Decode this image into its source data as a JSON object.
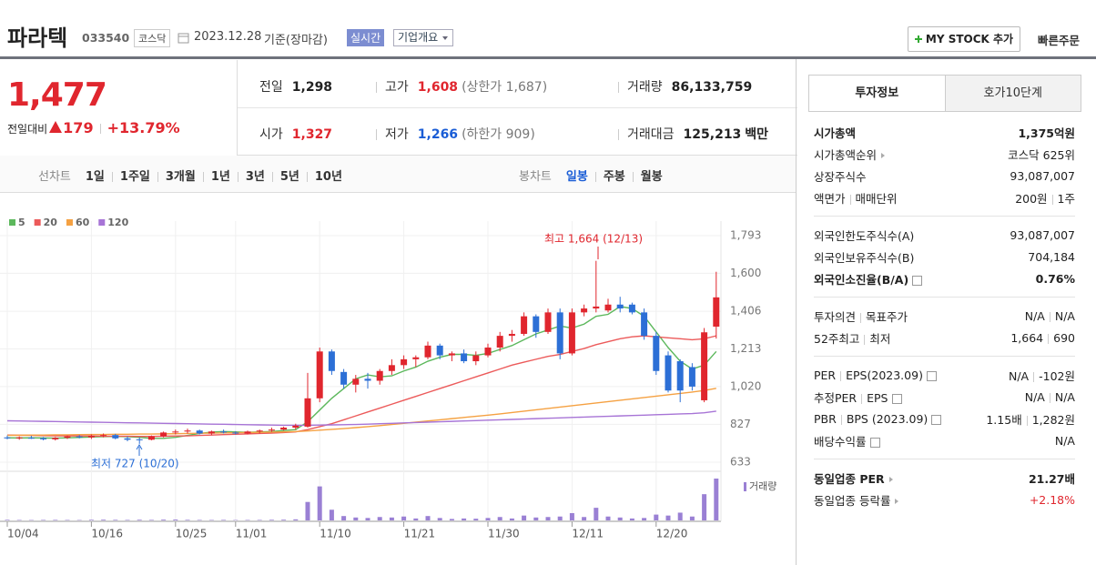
{
  "header": {
    "name": "파라텍",
    "code": "033540",
    "market": "코스닥",
    "date": "2023.12.28",
    "basis": "기준(장마감)",
    "realtime": "실시간",
    "company_info": "기업개요",
    "mystock": "MY STOCK 추가",
    "quick_order": "빠른주문"
  },
  "price": {
    "current": "1,477",
    "change_label": "전일대비",
    "change": "179",
    "change_rate": "+13.79%"
  },
  "summary": [
    {
      "label": "전일",
      "value": "1,298"
    },
    {
      "label": "고가",
      "value": "1,608",
      "extra": "(상한가 1,687)",
      "color": "#e0262e"
    },
    {
      "label": "거래량",
      "value": "86,133,759"
    },
    {
      "label": "시가",
      "value": "1,327",
      "color": "#e0262e"
    },
    {
      "label": "저가",
      "value": "1,266",
      "extra": "(하한가 909)",
      "color": "#1a5dd6"
    },
    {
      "label": "거래대금",
      "value": "125,213",
      "unit": "백만"
    }
  ],
  "chart_tabs": {
    "line_label": "선차트",
    "line_periods": [
      "1일",
      "1주일",
      "3개월",
      "1년",
      "3년",
      "5년",
      "10년"
    ],
    "candle_label": "봉차트",
    "candle_periods": [
      "일봉",
      "주봉",
      "월봉"
    ],
    "candle_selected_index": 0
  },
  "chart_data": {
    "type": "candlestick",
    "categories": [
      "10/04",
      null,
      null,
      null,
      null,
      null,
      null,
      "10/16",
      null,
      null,
      null,
      null,
      null,
      null,
      "10/25",
      null,
      null,
      null,
      null,
      "11/01",
      null,
      null,
      null,
      null,
      null,
      null,
      "11/10",
      null,
      null,
      null,
      null,
      null,
      null,
      "11/21",
      null,
      null,
      null,
      null,
      null,
      null,
      "11/30",
      null,
      null,
      null,
      null,
      null,
      null,
      "12/11",
      null,
      null,
      null,
      null,
      null,
      null,
      "12/20",
      null,
      null,
      null,
      null,
      null
    ],
    "open": [
      760,
      755,
      758,
      756,
      750,
      758,
      765,
      760,
      768,
      772,
      755,
      750,
      748,
      765,
      785,
      790,
      795,
      780,
      790,
      785,
      780,
      790,
      795,
      800,
      810,
      815,
      960,
      1200,
      1095,
      1030,
      1060,
      1050,
      1100,
      1130,
      1160,
      1170,
      1230,
      1180,
      1190,
      1150,
      1180,
      1220,
      1280,
      1290,
      1380,
      1300,
      1400,
      1190,
      1400,
      1420,
      1410,
      1440,
      1440,
      1400,
      1280,
      1180,
      1150,
      1120,
      950,
      1327
    ],
    "high": [
      770,
      765,
      768,
      762,
      762,
      770,
      772,
      775,
      780,
      778,
      765,
      760,
      770,
      790,
      800,
      805,
      800,
      795,
      800,
      792,
      795,
      800,
      810,
      815,
      830,
      1090,
      1220,
      1210,
      1110,
      1080,
      1090,
      1110,
      1160,
      1180,
      1180,
      1250,
      1240,
      1200,
      1210,
      1200,
      1240,
      1300,
      1310,
      1400,
      1390,
      1420,
      1420,
      1420,
      1440,
      1664,
      1470,
      1480,
      1450,
      1420,
      1300,
      1200,
      1160,
      1140,
      1320,
      1608
    ],
    "low": [
      750,
      748,
      752,
      745,
      744,
      752,
      755,
      752,
      760,
      750,
      740,
      727,
      745,
      760,
      775,
      780,
      775,
      772,
      780,
      775,
      775,
      780,
      788,
      795,
      800,
      810,
      940,
      1080,
      1010,
      990,
      1010,
      1030,
      1080,
      1110,
      1120,
      1160,
      1160,
      1150,
      1140,
      1130,
      1170,
      1200,
      1250,
      1280,
      1270,
      1290,
      1160,
      1180,
      1380,
      1400,
      1400,
      1400,
      1390,
      1260,
      1080,
      990,
      940,
      1000,
      940,
      1266
    ],
    "close": [
      755,
      760,
      756,
      750,
      758,
      765,
      760,
      768,
      772,
      755,
      748,
      748,
      765,
      785,
      790,
      795,
      780,
      790,
      785,
      780,
      790,
      795,
      800,
      810,
      820,
      960,
      1200,
      1100,
      1030,
      1060,
      1050,
      1100,
      1130,
      1160,
      1170,
      1230,
      1180,
      1190,
      1150,
      1180,
      1220,
      1280,
      1290,
      1380,
      1300,
      1400,
      1190,
      1400,
      1420,
      1430,
      1440,
      1420,
      1400,
      1280,
      1100,
      1000,
      1000,
      1020,
      1298,
      1477
    ],
    "up_color": "#e0262e",
    "down_color": "#2c6fd6",
    "series": [
      {
        "name": "5",
        "color": "#5cb85c",
        "values": [
          758,
          757,
          758,
          757,
          756,
          758,
          760,
          762,
          764,
          765,
          764,
          760,
          755,
          755,
          760,
          770,
          780,
          787,
          790,
          788,
          786,
          788,
          790,
          795,
          800,
          840,
          900,
          960,
          1010,
          1060,
          1080,
          1070,
          1075,
          1100,
          1120,
          1150,
          1170,
          1185,
          1185,
          1180,
          1190,
          1210,
          1230,
          1260,
          1290,
          1310,
          1330,
          1320,
          1340,
          1380,
          1390,
          1430,
          1420,
          1380,
          1300,
          1220,
          1150,
          1110,
          1130,
          1200
        ]
      },
      {
        "name": "20",
        "color": "#ec5a5a",
        "values": [
          772,
          771,
          770,
          769,
          768,
          768,
          767,
          767,
          766,
          766,
          766,
          765,
          765,
          766,
          767,
          768,
          770,
          772,
          774,
          776,
          778,
          780,
          782,
          785,
          788,
          800,
          815,
          830,
          850,
          870,
          890,
          910,
          930,
          950,
          970,
          990,
          1010,
          1030,
          1050,
          1070,
          1090,
          1110,
          1130,
          1145,
          1160,
          1175,
          1185,
          1200,
          1215,
          1235,
          1250,
          1265,
          1275,
          1280,
          1275,
          1270,
          1265,
          1260,
          1265,
          1280
        ]
      },
      {
        "name": "60",
        "color": "#f5a142",
        "values": [
          770,
          771,
          772,
          772,
          773,
          773,
          774,
          775,
          775,
          776,
          776,
          777,
          777,
          778,
          779,
          780,
          781,
          782,
          783,
          784,
          785,
          786,
          787,
          788,
          790,
          793,
          797,
          801,
          805,
          810,
          815,
          820,
          826,
          832,
          838,
          844,
          850,
          856,
          862,
          868,
          874,
          880,
          887,
          894,
          901,
          908,
          915,
          922,
          929,
          936,
          943,
          950,
          957,
          964,
          971,
          978,
          985,
          992,
          1000,
          1011
        ]
      },
      {
        "name": "120",
        "color": "#a774d6",
        "values": [
          845,
          844,
          843,
          842,
          841,
          840,
          839,
          838,
          837,
          836,
          835,
          834,
          833,
          832,
          831,
          830,
          829,
          828,
          827,
          826,
          825,
          824,
          823,
          822,
          822,
          822,
          823,
          824,
          825,
          826,
          828,
          830,
          832,
          834,
          836,
          838,
          840,
          842,
          844,
          846,
          848,
          850,
          852,
          854,
          856,
          858,
          860,
          862,
          864,
          866,
          868,
          870,
          872,
          874,
          876,
          878,
          880,
          882,
          886,
          894
        ]
      }
    ],
    "volume": {
      "name": "거래량",
      "color": "#9a80d4",
      "values": [
        1200000,
        900000,
        800000,
        1000000,
        1100000,
        900000,
        800000,
        1300000,
        1500000,
        1200000,
        1000000,
        1400000,
        1100000,
        1600000,
        1800000,
        1200000,
        1000000,
        900000,
        1100000,
        800000,
        900000,
        1000000,
        1300000,
        1500000,
        2200000,
        38000000,
        70000000,
        22000000,
        9000000,
        6000000,
        5000000,
        7000000,
        6000000,
        8000000,
        4000000,
        9000000,
        5000000,
        3000000,
        4000000,
        3500000,
        5000000,
        7000000,
        4000000,
        10000000,
        6000000,
        7000000,
        8000000,
        15000000,
        7000000,
        26000000,
        8000000,
        6000000,
        4000000,
        5000000,
        12000000,
        10000000,
        16000000,
        8000000,
        54000000,
        86133759
      ]
    },
    "ylim": [
      633,
      1793
    ],
    "yticks": [
      {
        "value": 1793,
        "label": "1,793"
      },
      {
        "value": 1600,
        "label": "1,600"
      },
      {
        "value": 1406,
        "label": "1,406"
      },
      {
        "value": 1213,
        "label": "1,213"
      },
      {
        "value": 1020,
        "label": "1,020"
      },
      827,
      633
    ],
    "grid": true,
    "annotations": [
      {
        "text": "최고 1,664 (12/13)",
        "color": "#e0262e"
      },
      {
        "text": "최저 727 (10/20)",
        "color": "#2c6fd6"
      }
    ]
  },
  "side_panel": {
    "tabs": [
      "투자정보",
      "호가10단계"
    ],
    "sections": [
      {
        "rows": [
          {
            "label": [
              "시가총액"
            ],
            "value": [
              "1,375억원"
            ],
            "bold": true
          },
          {
            "label": [
              "시가총액순위"
            ],
            "value": [
              "코스닥 625위"
            ],
            "arrow": true
          },
          {
            "label": [
              "상장주식수"
            ],
            "value": [
              "93,087,007"
            ]
          },
          {
            "label": [
              "액면가",
              "매매단위"
            ],
            "value": [
              "200원",
              "1주"
            ]
          }
        ]
      },
      {
        "rows": [
          {
            "label": [
              "외국인한도주식수(A)"
            ],
            "value": [
              "93,087,007"
            ]
          },
          {
            "label": [
              "외국인보유주식수(B)"
            ],
            "value": [
              "704,184"
            ]
          },
          {
            "label": [
              "외국인소진율(B/A)"
            ],
            "value": [
              "0.76%"
            ],
            "bold": true,
            "help": true
          }
        ]
      },
      {
        "rows": [
          {
            "label": [
              "투자의견",
              "목표주가"
            ],
            "value": [
              "N/A",
              "N/A"
            ]
          },
          {
            "label": [
              "52주최고",
              "최저"
            ],
            "value": [
              "1,664",
              "690"
            ]
          }
        ]
      },
      {
        "rows": [
          {
            "label": [
              "PER",
              "EPS(2023.09)"
            ],
            "value": [
              "N/A",
              "-102원"
            ],
            "help": true
          },
          {
            "label": [
              "추정PER",
              "EPS"
            ],
            "value": [
              "N/A",
              "N/A"
            ],
            "help": true
          },
          {
            "label": [
              "PBR",
              "BPS (2023.09)"
            ],
            "value": [
              "1.15배",
              "1,282원"
            ],
            "help": true
          },
          {
            "label": [
              "배당수익률"
            ],
            "value": [
              "N/A"
            ],
            "help": true
          }
        ]
      },
      {
        "rows": [
          {
            "label": [
              "동일업종 PER"
            ],
            "value": [
              "21.27배"
            ],
            "bold": true,
            "arrow": true
          },
          {
            "label": [
              "동일업종 등락률"
            ],
            "value": [
              "+2.18%"
            ],
            "arrow": true,
            "value_color": "#e0262e"
          }
        ]
      }
    ]
  }
}
